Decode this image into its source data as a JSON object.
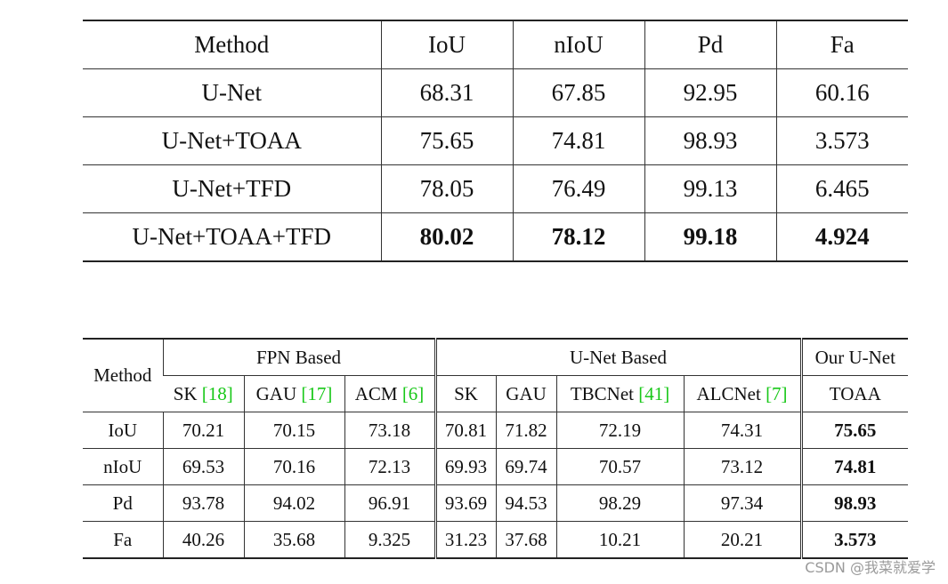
{
  "table1": {
    "columns": [
      "Method",
      "IoU",
      "nIoU",
      "Pd",
      "Fa"
    ],
    "rows": [
      [
        "U-Net",
        "68.31",
        "67.85",
        "92.95",
        "60.16"
      ],
      [
        "U-Net+TOAA",
        "75.65",
        "74.81",
        "98.93",
        "3.573"
      ],
      [
        "U-Net+TFD",
        "78.05",
        "76.49",
        "99.13",
        "6.465"
      ],
      [
        "U-Net+TOAA+TFD",
        "80.02",
        "78.12",
        "99.18",
        "4.924"
      ]
    ]
  },
  "table2": {
    "method_header": "Method",
    "groups": [
      {
        "label": "FPN Based",
        "columns": [
          {
            "name": "SK",
            "ref": "[18]"
          },
          {
            "name": "GAU",
            "ref": "[17]"
          },
          {
            "name": "ACM",
            "ref": "[6]"
          }
        ]
      },
      {
        "label": "U-Net Based",
        "columns": [
          {
            "name": "SK"
          },
          {
            "name": "GAU"
          },
          {
            "name": "TBCNet",
            "ref": "[41]"
          },
          {
            "name": "ALCNet",
            "ref": "[7]"
          }
        ]
      },
      {
        "label": "Our U-Net",
        "columns": [
          {
            "name": "TOAA"
          }
        ]
      }
    ],
    "rows": [
      {
        "label": "IoU",
        "values": [
          "70.21",
          "70.15",
          "73.18",
          "70.81",
          "71.82",
          "72.19",
          "74.31",
          "75.65"
        ]
      },
      {
        "label": "nIoU",
        "values": [
          "69.53",
          "70.16",
          "72.13",
          "69.93",
          "69.74",
          "70.57",
          "73.12",
          "74.81"
        ]
      },
      {
        "label": "Pd",
        "values": [
          "93.78",
          "94.02",
          "96.91",
          "93.69",
          "94.53",
          "98.29",
          "97.34",
          "98.93"
        ]
      },
      {
        "label": "Fa",
        "values": [
          "40.26",
          "35.68",
          "9.325",
          "31.23",
          "37.68",
          "10.21",
          "20.21",
          "3.573"
        ]
      }
    ]
  },
  "watermark": "CSDN @我菜就爱学"
}
